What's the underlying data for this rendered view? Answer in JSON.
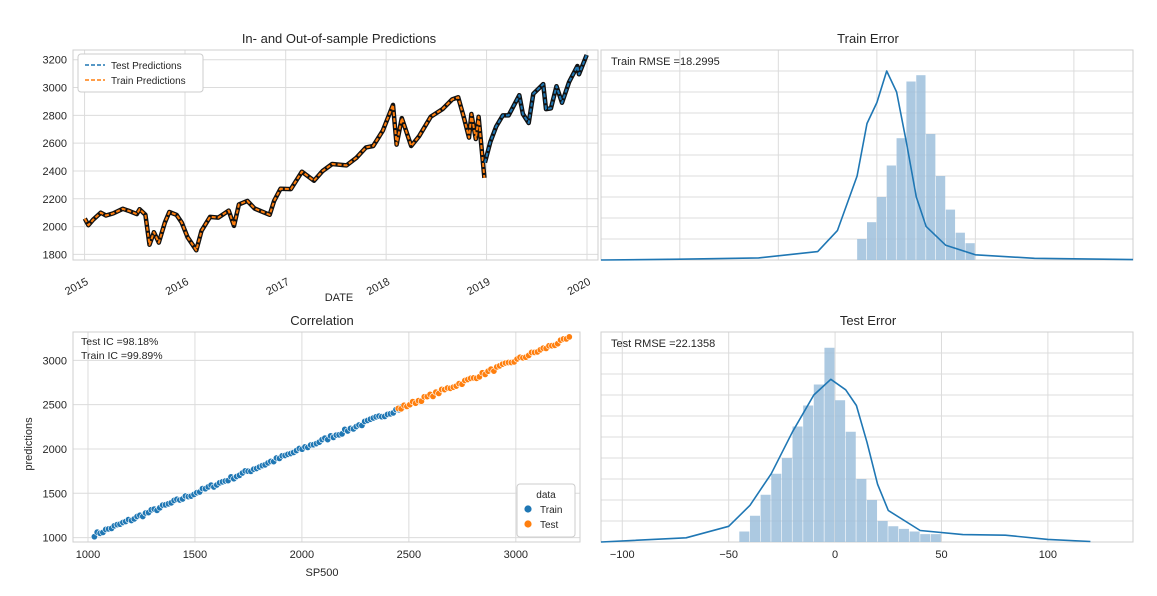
{
  "colors": {
    "blue": "#1f77b4",
    "orange": "#ff7f0e",
    "hist_fill": "#9dbfdc",
    "grid": "#dcdcdc",
    "axis": "#cfcfcf"
  },
  "chart_data": [
    {
      "id": "predictions",
      "type": "line",
      "title": "In- and Out-of-sample Predictions",
      "xlabel": "DATE",
      "ylabel": "",
      "x_ticks": [
        "2015",
        "2016",
        "2017",
        "2018",
        "2019",
        "2020"
      ],
      "y_ticks": [
        1800,
        2000,
        2200,
        2400,
        2600,
        2800,
        3000,
        3200
      ],
      "xlim": [
        "2014-11-20",
        "2020-02-10"
      ],
      "ylim": [
        1760,
        3270
      ],
      "legend": {
        "position": "top-left",
        "entries": [
          "Test Predictions",
          "Train Predictions"
        ]
      },
      "series": [
        {
          "name": "Train Predictions",
          "color_key": "orange",
          "points": [
            [
              "2015-01-02",
              2058
            ],
            [
              "2015-01-15",
              2010
            ],
            [
              "2015-02-01",
              2050
            ],
            [
              "2015-03-01",
              2100
            ],
            [
              "2015-03-20",
              2080
            ],
            [
              "2015-04-15",
              2095
            ],
            [
              "2015-05-20",
              2128
            ],
            [
              "2015-06-15",
              2110
            ],
            [
              "2015-07-10",
              2090
            ],
            [
              "2015-07-20",
              2125
            ],
            [
              "2015-08-10",
              2085
            ],
            [
              "2015-08-25",
              1870
            ],
            [
              "2015-09-10",
              1960
            ],
            [
              "2015-09-28",
              1885
            ],
            [
              "2015-10-20",
              2030
            ],
            [
              "2015-11-05",
              2105
            ],
            [
              "2015-12-01",
              2085
            ],
            [
              "2015-12-20",
              2030
            ],
            [
              "2016-01-10",
              1925
            ],
            [
              "2016-02-11",
              1830
            ],
            [
              "2016-03-01",
              1970
            ],
            [
              "2016-04-01",
              2070
            ],
            [
              "2016-05-01",
              2065
            ],
            [
              "2016-06-08",
              2115
            ],
            [
              "2016-06-27",
              2005
            ],
            [
              "2016-07-15",
              2160
            ],
            [
              "2016-08-15",
              2185
            ],
            [
              "2016-09-10",
              2130
            ],
            [
              "2016-11-04",
              2085
            ],
            [
              "2016-11-20",
              2185
            ],
            [
              "2016-12-13",
              2272
            ],
            [
              "2017-01-20",
              2270
            ],
            [
              "2017-03-01",
              2395
            ],
            [
              "2017-04-14",
              2330
            ],
            [
              "2017-05-15",
              2400
            ],
            [
              "2017-06-19",
              2450
            ],
            [
              "2017-08-10",
              2440
            ],
            [
              "2017-09-15",
              2495
            ],
            [
              "2017-10-20",
              2570
            ],
            [
              "2017-11-15",
              2580
            ],
            [
              "2017-12-20",
              2690
            ],
            [
              "2018-01-26",
              2875
            ],
            [
              "2018-02-08",
              2590
            ],
            [
              "2018-02-27",
              2780
            ],
            [
              "2018-04-02",
              2580
            ],
            [
              "2018-05-01",
              2650
            ],
            [
              "2018-06-12",
              2790
            ],
            [
              "2018-07-25",
              2845
            ],
            [
              "2018-08-29",
              2915
            ],
            [
              "2018-09-20",
              2930
            ],
            [
              "2018-10-10",
              2790
            ],
            [
              "2018-10-29",
              2640
            ],
            [
              "2018-11-07",
              2810
            ],
            [
              "2018-11-23",
              2630
            ],
            [
              "2018-12-03",
              2790
            ],
            [
              "2018-12-24",
              2350
            ]
          ]
        },
        {
          "name": "Test Predictions",
          "color_key": "blue",
          "points": [
            [
              "2018-12-26",
              2460
            ],
            [
              "2019-01-15",
              2610
            ],
            [
              "2019-02-05",
              2720
            ],
            [
              "2019-03-01",
              2800
            ],
            [
              "2019-03-22",
              2800
            ],
            [
              "2019-04-30",
              2945
            ],
            [
              "2019-05-13",
              2810
            ],
            [
              "2019-06-03",
              2745
            ],
            [
              "2019-06-20",
              2955
            ],
            [
              "2019-07-26",
              3025
            ],
            [
              "2019-08-05",
              2845
            ],
            [
              "2019-08-23",
              2850
            ],
            [
              "2019-09-12",
              3010
            ],
            [
              "2019-10-02",
              2890
            ],
            [
              "2019-10-28",
              3040
            ],
            [
              "2019-11-27",
              3155
            ],
            [
              "2019-12-03",
              3095
            ],
            [
              "2019-12-31",
              3235
            ]
          ]
        }
      ]
    },
    {
      "id": "train_error",
      "type": "histogram",
      "title": "Train Error",
      "annotation": "Train RMSE =18.2995",
      "xlim": [
        -140,
        130
      ],
      "x_ticks_hidden": [
        -100,
        -50,
        0,
        50,
        100
      ],
      "bins": {
        "start": -10,
        "width": 5,
        "heights": [
          0.01,
          0.018,
          0.03,
          0.045,
          0.058,
          0.085,
          0.088,
          0.06,
          0.04,
          0.024,
          0.013,
          0.008
        ]
      },
      "kde": [
        [
          -140,
          0
        ],
        [
          -100,
          0.0004
        ],
        [
          -60,
          0.001
        ],
        [
          -30,
          0.004
        ],
        [
          -20,
          0.014
        ],
        [
          -10,
          0.04
        ],
        [
          -5,
          0.065
        ],
        [
          0,
          0.075
        ],
        [
          5,
          0.09
        ],
        [
          10,
          0.08
        ],
        [
          15,
          0.056
        ],
        [
          20,
          0.03
        ],
        [
          25,
          0.016
        ],
        [
          35,
          0.007
        ],
        [
          50,
          0.0025
        ],
        [
          80,
          0.0008
        ],
        [
          130,
          0.0002
        ]
      ],
      "ymax": 0.1
    },
    {
      "id": "correlation",
      "type": "scatter",
      "title": "Correlation",
      "xlabel": "SP500",
      "ylabel": "predictions",
      "x_ticks": [
        1000,
        1500,
        2000,
        2500,
        3000
      ],
      "y_ticks": [
        1000,
        1500,
        2000,
        2500,
        3000
      ],
      "xlim": [
        930,
        3300
      ],
      "ylim": [
        950,
        3320
      ],
      "annotations": [
        "Test IC =98.18%",
        "Train IC =99.89%"
      ],
      "legend": {
        "title": "data",
        "position": "bottom-right",
        "entries": [
          "Train",
          "Test"
        ]
      },
      "series": [
        {
          "name": "Train",
          "color_key": "blue",
          "x_range": [
            1030,
            2480
          ],
          "count": 110
        },
        {
          "name": "Test",
          "color_key": "orange",
          "x_range": [
            2450,
            3250
          ],
          "count": 60
        }
      ]
    },
    {
      "id": "test_error",
      "type": "histogram",
      "title": "Test Error",
      "annotation": "Test RMSE =22.1358",
      "xlim": [
        -110,
        140
      ],
      "x_ticks": [
        -100,
        -50,
        0,
        50,
        100
      ],
      "bins": {
        "start": -45,
        "width": 5,
        "heights": [
          0.002,
          0.005,
          0.009,
          0.013,
          0.016,
          0.022,
          0.026,
          0.03,
          0.037,
          0.027,
          0.021,
          0.012,
          0.008,
          0.004,
          0.003,
          0.0025,
          0.002,
          0.0015,
          0.0015
        ]
      },
      "kde": [
        [
          -110,
          0
        ],
        [
          -70,
          0.0008
        ],
        [
          -50,
          0.003
        ],
        [
          -40,
          0.007
        ],
        [
          -30,
          0.013
        ],
        [
          -20,
          0.021
        ],
        [
          -10,
          0.028
        ],
        [
          -2,
          0.031
        ],
        [
          5,
          0.029
        ],
        [
          10,
          0.026
        ],
        [
          15,
          0.019
        ],
        [
          20,
          0.011
        ],
        [
          25,
          0.006
        ],
        [
          40,
          0.0022
        ],
        [
          60,
          0.0014
        ],
        [
          80,
          0.0013
        ],
        [
          100,
          0.0005
        ],
        [
          120,
          0.0001
        ]
      ],
      "ymax": 0.04
    }
  ]
}
